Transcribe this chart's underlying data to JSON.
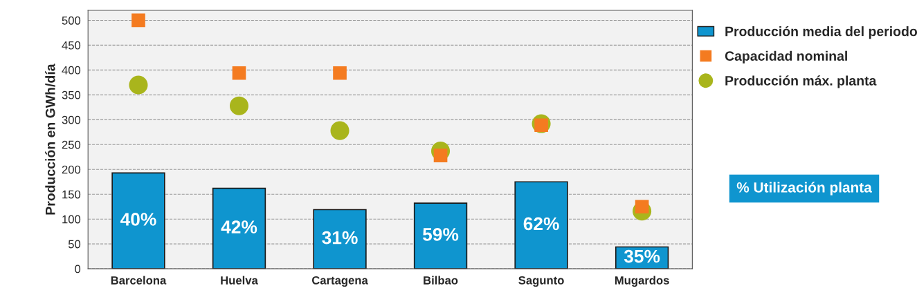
{
  "chart_data": {
    "type": "bar",
    "ylabel": "Producción en GWh/día",
    "categories": [
      "Barcelona",
      "Huelva",
      "Cartagena",
      "Bilbao",
      "Sagunto",
      "Mugardos"
    ],
    "series": [
      {
        "name": "Producción media del periodo",
        "color": "#0f95cf",
        "values": [
          193,
          162,
          119,
          132,
          175,
          44
        ]
      },
      {
        "name": "Capacidad nominal",
        "type": "scatter",
        "marker": "square",
        "color": "#f47b20",
        "values": [
          500,
          394,
          394,
          228,
          289,
          125
        ]
      },
      {
        "name": "Producción máx. planta",
        "type": "scatter",
        "marker": "circle",
        "color": "#a9b51c",
        "values": [
          370,
          328,
          278,
          237,
          292,
          116
        ]
      }
    ],
    "annotations": [
      "40%",
      "42%",
      "31%",
      "59%",
      "62%",
      "35%",
      "% Utilización planta"
    ],
    "ylim": [
      0,
      520
    ],
    "yticks": [
      0,
      50,
      100,
      150,
      200,
      250,
      300,
      350,
      400,
      450,
      500
    ],
    "grid": "y",
    "legend": "right"
  }
}
